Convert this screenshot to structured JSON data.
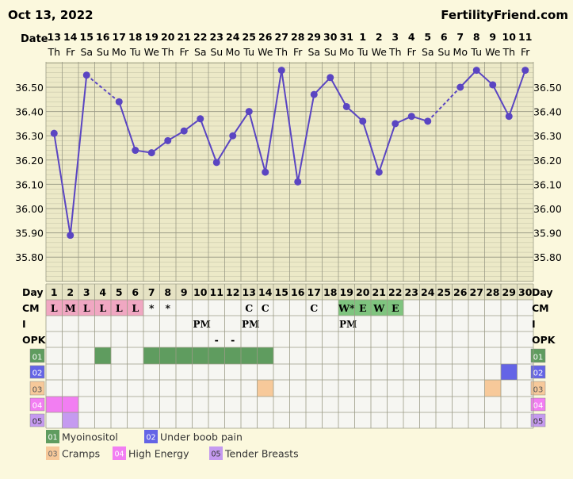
{
  "header": {
    "date": "Oct 13, 2022",
    "brand": "FertilityFriend.com",
    "date_label": "Date",
    "day_label": "Day",
    "cm_label": "CM",
    "i_label": "I",
    "opk_label": "OPK"
  },
  "chart_data": {
    "type": "line",
    "dates": [
      "13",
      "14",
      "15",
      "16",
      "17",
      "18",
      "19",
      "20",
      "21",
      "22",
      "23",
      "24",
      "25",
      "26",
      "27",
      "28",
      "29",
      "30",
      "31",
      "1",
      "2",
      "3",
      "4",
      "5",
      "6",
      "7",
      "8",
      "9",
      "10",
      "11"
    ],
    "weekdays": [
      "Th",
      "Fr",
      "Sa",
      "Su",
      "Mo",
      "Tu",
      "We",
      "Th",
      "Fr",
      "Sa",
      "Su",
      "Mo",
      "Tu",
      "We",
      "Th",
      "Fr",
      "Sa",
      "Su",
      "Mo",
      "Tu",
      "We",
      "Th",
      "Fr",
      "Sa",
      "Su",
      "Mo",
      "Tu",
      "We",
      "Th",
      "Fr"
    ],
    "cycle_days": [
      "1",
      "2",
      "3",
      "4",
      "5",
      "6",
      "7",
      "8",
      "9",
      "10",
      "11",
      "12",
      "13",
      "14",
      "15",
      "16",
      "17",
      "18",
      "19",
      "20",
      "21",
      "22",
      "23",
      "24",
      "25",
      "26",
      "27",
      "28",
      "29",
      "30"
    ],
    "temps": [
      36.31,
      35.89,
      36.55,
      null,
      36.44,
      36.24,
      36.23,
      36.28,
      36.32,
      36.37,
      36.19,
      36.3,
      36.4,
      36.15,
      36.57,
      36.11,
      36.47,
      36.54,
      36.42,
      36.36,
      36.15,
      36.35,
      36.38,
      36.36,
      null,
      36.5,
      36.57,
      36.51,
      36.38,
      36.57
    ],
    "ylim": [
      35.7,
      36.6
    ],
    "y_ticks": [
      "36.50",
      "36.40",
      "36.30",
      "36.20",
      "36.10",
      "36.00",
      "35.90",
      "35.80"
    ],
    "line_color": "#5a45c2"
  },
  "rows": {
    "cm": [
      "L",
      "M",
      "L",
      "L",
      "L",
      "L",
      "*",
      "*",
      "",
      "",
      "",
      "",
      "C",
      "C",
      "",
      "",
      "C",
      "",
      "W*",
      "E",
      "W",
      "E",
      "",
      "",
      "",
      "",
      "",
      "",
      "",
      ""
    ],
    "i": [
      "",
      "",
      "",
      "",
      "",
      "",
      "",
      "",
      "",
      "PM",
      "",
      "",
      "PM",
      "",
      "",
      "",
      "",
      "",
      "PM",
      "",
      "",
      "",
      "",
      "",
      "",
      "",
      "",
      "",
      "",
      ""
    ],
    "opk": [
      "",
      "",
      "",
      "",
      "",
      "",
      "",
      "",
      "",
      "",
      "-",
      "-",
      "",
      "",
      "",
      "",
      "",
      "",
      "",
      "",
      "",
      "",
      "",
      "",
      "",
      "",
      "",
      "",
      "",
      ""
    ]
  },
  "symptoms": [
    {
      "code": "01",
      "label": "Myoinositol",
      "color": "#5f9c5f",
      "days": [
        4,
        7,
        8,
        9,
        10,
        11,
        12,
        13,
        14
      ]
    },
    {
      "code": "02",
      "label": "Under boob pain",
      "color": "#6464e6",
      "days": [
        29
      ]
    },
    {
      "code": "03",
      "label": "Cramps",
      "color": "#f7c99a",
      "days": [
        14,
        28
      ]
    },
    {
      "code": "04",
      "label": "High Energy",
      "color": "#f27ef2",
      "days": [
        1,
        2
      ]
    },
    {
      "code": "05",
      "label": "Tender Breasts",
      "color": "#c59af0",
      "days": [
        2
      ]
    }
  ],
  "colors": {
    "cm_pink": "#f0a7c2",
    "cm_green": "#7fc47f",
    "grid_bg": "#ece9c7",
    "grid_line": "#9b9b86"
  }
}
